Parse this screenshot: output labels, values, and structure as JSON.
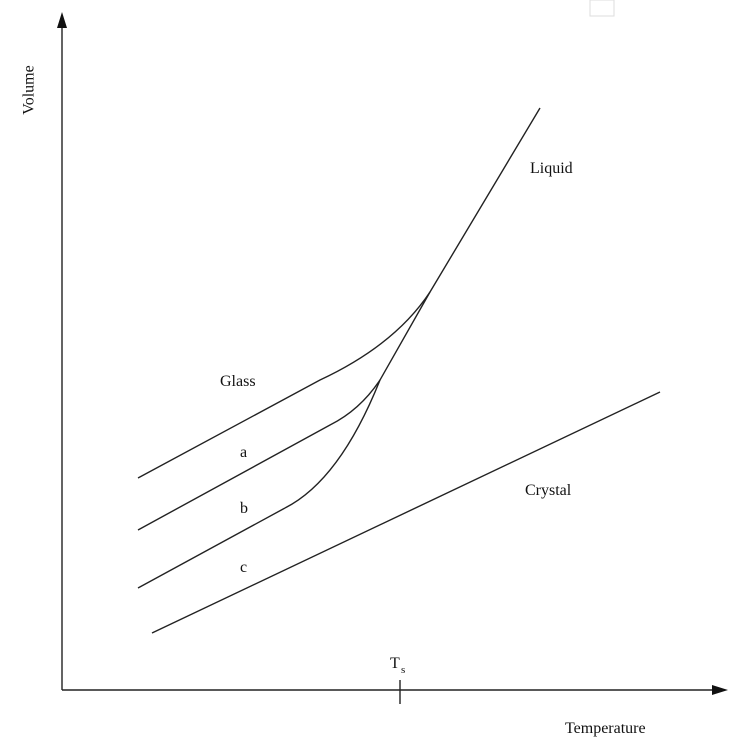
{
  "axes": {
    "y_label": "Volume",
    "x_label": "Temperature"
  },
  "curves": {
    "liquid": "Liquid",
    "glass": "Glass",
    "a": "a",
    "b": "b",
    "c": "c",
    "crystal": "Crystal"
  },
  "tick": {
    "main": "T",
    "sub": "s"
  }
}
